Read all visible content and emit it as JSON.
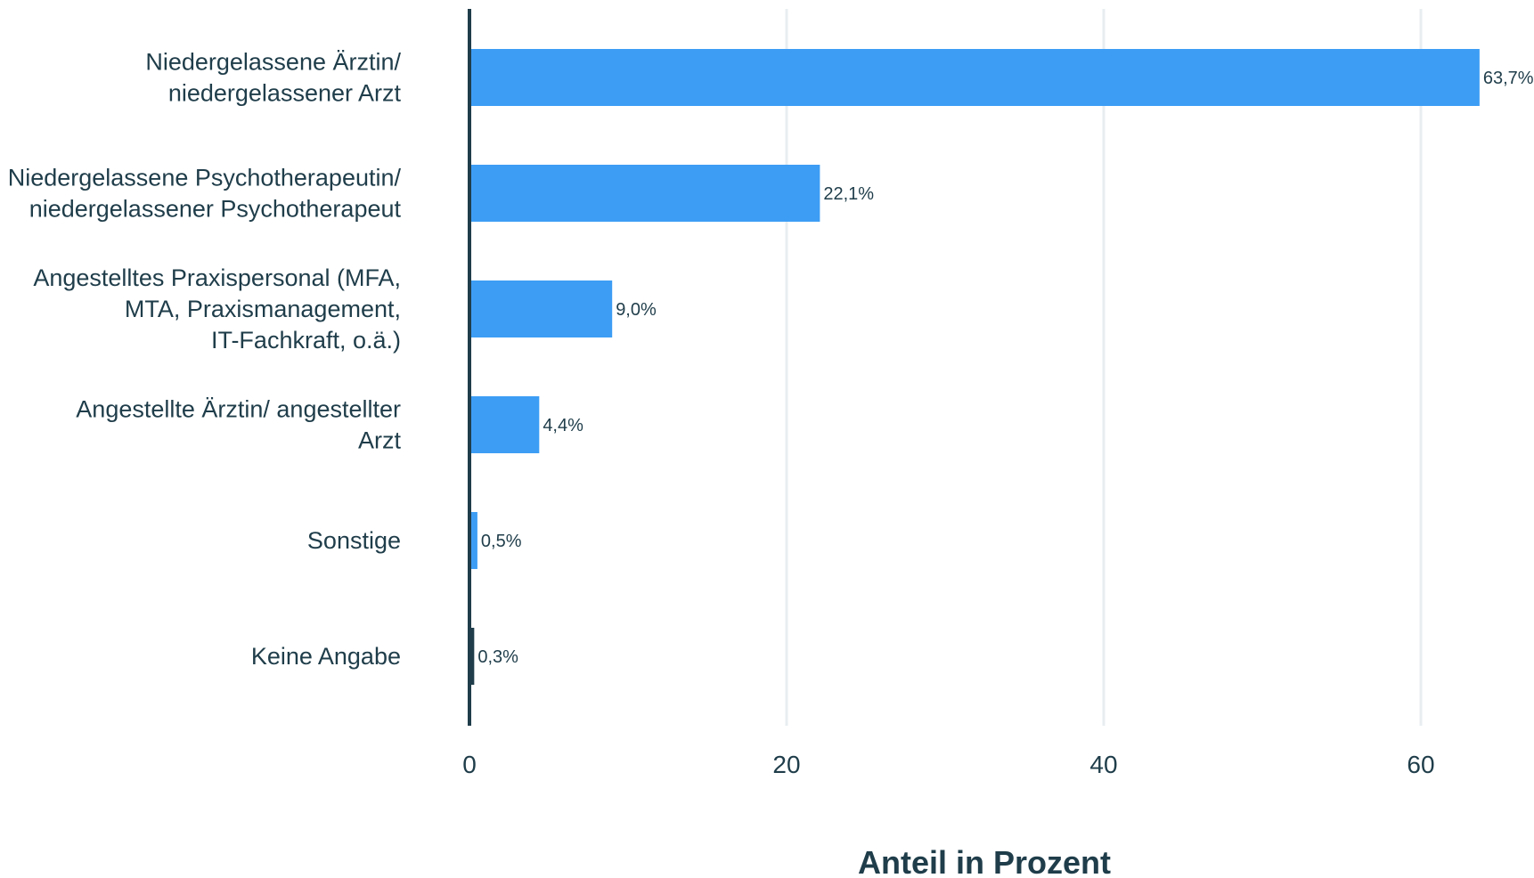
{
  "chart_data": {
    "type": "bar",
    "orientation": "horizontal",
    "categories": [
      [
        "Niedergelassene Ärztin/",
        "niedergelassener Arzt"
      ],
      [
        "Niedergelassene Psychotherapeutin/",
        "niedergelassener Psychotherapeut"
      ],
      [
        "Angestelltes Praxispersonal (MFA,",
        "MTA, Praxismanagement,",
        "IT-Fachkraft, o.ä.)"
      ],
      [
        "Angestellte Ärztin/ angestellter",
        "Arzt"
      ],
      [
        "Sonstige"
      ],
      [
        "Keine Angabe"
      ]
    ],
    "values": [
      63.7,
      22.1,
      9.0,
      4.4,
      0.5,
      0.3
    ],
    "value_labels": [
      "63,7%",
      "22,1%",
      "9,0%",
      "4,4%",
      "0,5%",
      "0,3%"
    ],
    "bar_colors": [
      "#3d9df5",
      "#3d9df5",
      "#3d9df5",
      "#3d9df5",
      "#3d9df5",
      "#1f3d4a"
    ],
    "xlabel": "Anteil in Prozent",
    "xlim": [
      0,
      66.5
    ],
    "xticks": [
      0,
      20,
      40,
      60
    ],
    "xtick_labels": [
      "0",
      "20",
      "40",
      "60"
    ],
    "grid": "vertical"
  }
}
